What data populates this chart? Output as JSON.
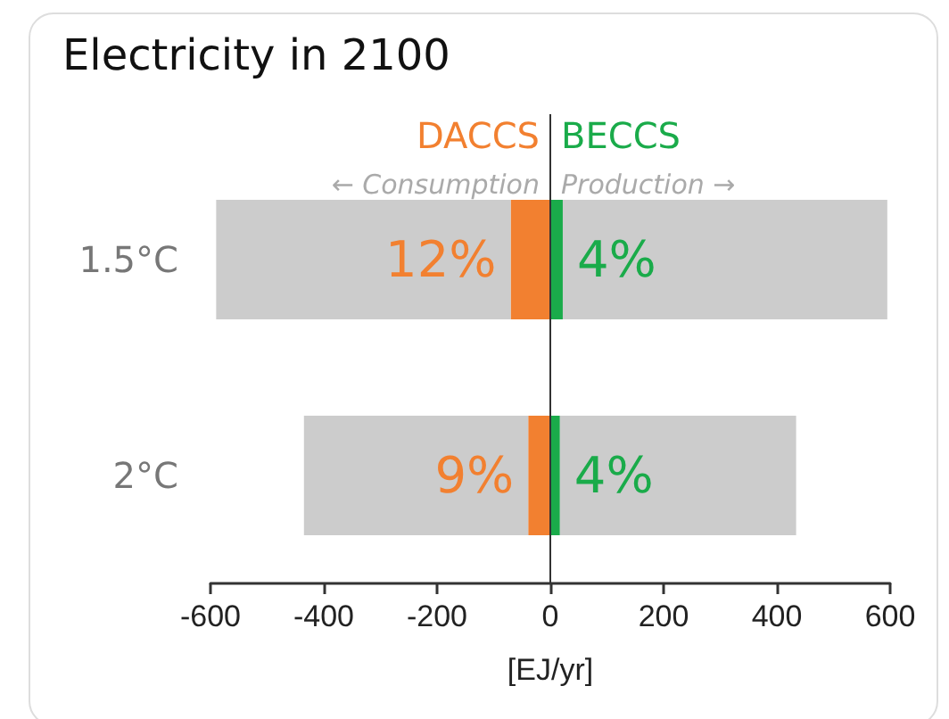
{
  "chart_data": {
    "type": "bar",
    "title": "Electricity in 2100",
    "orientation": "horizontal",
    "xlabel": "[EJ/yr]",
    "stacked": true,
    "categories": [
      "1.5°C",
      "2°C"
    ],
    "series": [
      {
        "name": "DACCS",
        "color": "#f28030",
        "values": [
          -70,
          -39
        ]
      },
      {
        "name": "BECCS",
        "color": "#1aab4a",
        "values": [
          22,
          17
        ]
      },
      {
        "color": "#cccccc",
        "values": [
          -520,
          -396
        ]
      },
      {
        "color": "#cccccc",
        "values": [
          573,
          417
        ]
      }
    ],
    "xlim": [
      -600,
      600
    ],
    "xticks": [
      -600,
      -400,
      -200,
      0,
      200,
      400,
      600
    ],
    "annotations": [
      "← Consumption",
      "Production →",
      {
        "text": "12%",
        "x": -70,
        "y": "1.5°C"
      },
      {
        "text": "4%",
        "x": 22,
        "y": "1.5°C"
      },
      {
        "text": "9%",
        "x": -39,
        "y": "2°C"
      },
      {
        "text": "4%",
        "x": 17,
        "y": "2°C"
      }
    ],
    "ref_lines": [
      {
        "axis": "x",
        "value": 0,
        "color": "#333333"
      }
    ],
    "grid": false,
    "legend": false
  }
}
